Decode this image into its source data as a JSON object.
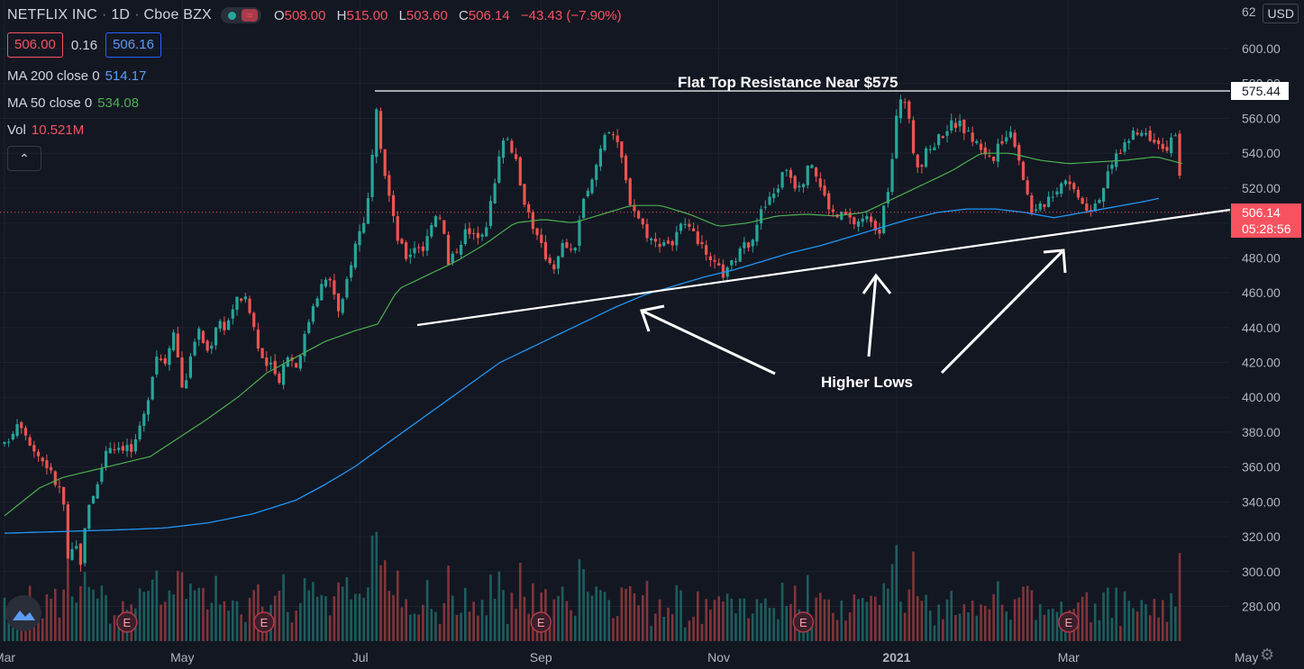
{
  "header": {
    "symbol": "NETFLIX INC",
    "interval": "1D",
    "exchange": "Cboe BZX",
    "open_label": "O",
    "open": "508.00",
    "high_label": "H",
    "high": "515.00",
    "low_label": "L",
    "low": "503.60",
    "close_label": "C",
    "close": "506.14",
    "change": "−43.43 (−7.90%)"
  },
  "quote": {
    "bid": "506.00",
    "spread": "0.16",
    "ask": "506.16"
  },
  "indicators": {
    "ma200": {
      "label": "MA 200 close 0",
      "value": "514.17"
    },
    "ma50": {
      "label": "MA 50 close 0",
      "value": "534.08"
    },
    "vol": {
      "label": "Vol",
      "value": "10.521M"
    }
  },
  "currency": "USD",
  "top_clipped_label": "62",
  "colors": {
    "up": "#26a69a",
    "down": "#ef5350",
    "ma200": "#2196f3",
    "ma50": "#4caf50",
    "bg": "#131722",
    "grid": "#1e222d",
    "price_tag": "#f7525f"
  },
  "chart_data": {
    "type": "candlestick",
    "yaxis_ticks": [
      "600.00",
      "580.00",
      "560.00",
      "540.00",
      "520.00",
      "500.00",
      "480.00",
      "460.00",
      "440.00",
      "420.00",
      "400.00",
      "380.00",
      "360.00",
      "340.00",
      "320.00",
      "300.00",
      "280.00"
    ],
    "ylim": [
      268,
      623
    ],
    "xaxis_labels": [
      {
        "text": "Mar",
        "day": 0,
        "bold": false
      },
      {
        "text": "May",
        "day": 61,
        "bold": false
      },
      {
        "text": "Jul",
        "day": 122,
        "bold": false
      },
      {
        "text": "Sep",
        "day": 184,
        "bold": false
      },
      {
        "text": "Nov",
        "day": 245,
        "bold": false
      },
      {
        "text": "2021",
        "day": 306,
        "bold": true
      },
      {
        "text": "Mar",
        "day": 365,
        "bold": false
      },
      {
        "text": "May",
        "day": 426,
        "bold": false
      }
    ],
    "last_price": "506.14",
    "countdown": "05:28:56",
    "resistance_tag": "575.44",
    "resistance_value": 575.44,
    "price_anchors": [
      [
        0,
        372
      ],
      [
        5,
        388
      ],
      [
        10,
        370
      ],
      [
        15,
        360
      ],
      [
        17,
        352
      ],
      [
        20,
        345
      ],
      [
        22,
        300
      ],
      [
        24,
        318
      ],
      [
        26,
        305
      ],
      [
        29,
        340
      ],
      [
        32,
        350
      ],
      [
        35,
        372
      ],
      [
        38,
        372
      ],
      [
        42,
        372
      ],
      [
        44,
        368
      ],
      [
        48,
        390
      ],
      [
        52,
        425
      ],
      [
        55,
        420
      ],
      [
        58,
        440
      ],
      [
        61,
        405
      ],
      [
        63,
        415
      ],
      [
        66,
        440
      ],
      [
        70,
        425
      ],
      [
        73,
        445
      ],
      [
        76,
        440
      ],
      [
        79,
        455
      ],
      [
        82,
        458
      ],
      [
        85,
        445
      ],
      [
        88,
        420
      ],
      [
        91,
        418
      ],
      [
        94,
        410
      ],
      [
        97,
        425
      ],
      [
        100,
        418
      ],
      [
        103,
        435
      ],
      [
        106,
        455
      ],
      [
        109,
        465
      ],
      [
        112,
        468
      ],
      [
        115,
        445
      ],
      [
        118,
        472
      ],
      [
        121,
        492
      ],
      [
        124,
        505
      ],
      [
        126,
        530
      ],
      [
        127,
        572
      ],
      [
        129,
        540
      ],
      [
        131,
        525
      ],
      [
        133,
        505
      ],
      [
        135,
        490
      ],
      [
        138,
        480
      ],
      [
        141,
        488
      ],
      [
        144,
        485
      ],
      [
        147,
        505
      ],
      [
        150,
        505
      ],
      [
        152,
        475
      ],
      [
        155,
        485
      ],
      [
        158,
        495
      ],
      [
        161,
        492
      ],
      [
        165,
        498
      ],
      [
        168,
        520
      ],
      [
        171,
        550
      ],
      [
        173,
        548
      ],
      [
        175,
        538
      ],
      [
        177,
        520
      ],
      [
        180,
        505
      ],
      [
        183,
        490
      ],
      [
        186,
        480
      ],
      [
        189,
        475
      ],
      [
        192,
        490
      ],
      [
        195,
        480
      ],
      [
        198,
        510
      ],
      [
        201,
        520
      ],
      [
        204,
        540
      ],
      [
        206,
        553
      ],
      [
        208,
        555
      ],
      [
        210,
        545
      ],
      [
        212,
        535
      ],
      [
        214,
        515
      ],
      [
        217,
        505
      ],
      [
        220,
        495
      ],
      [
        223,
        488
      ],
      [
        226,
        490
      ],
      [
        229,
        488
      ],
      [
        232,
        498
      ],
      [
        235,
        495
      ],
      [
        238,
        490
      ],
      [
        241,
        478
      ],
      [
        244,
        475
      ],
      [
        247,
        470
      ],
      [
        250,
        478
      ],
      [
        253,
        485
      ],
      [
        256,
        490
      ],
      [
        259,
        505
      ],
      [
        262,
        512
      ],
      [
        265,
        520
      ],
      [
        268,
        533
      ],
      [
        271,
        522
      ],
      [
        274,
        525
      ],
      [
        277,
        535
      ],
      [
        280,
        520
      ],
      [
        282,
        512
      ],
      [
        285,
        503
      ],
      [
        288,
        505
      ],
      [
        291,
        500
      ],
      [
        294,
        502
      ],
      [
        297,
        503
      ],
      [
        300,
        495
      ],
      [
        302,
        510
      ],
      [
        304,
        528
      ],
      [
        306,
        560
      ],
      [
        308,
        578
      ],
      [
        310,
        560
      ],
      [
        312,
        540
      ],
      [
        314,
        530
      ],
      [
        316,
        540
      ],
      [
        319,
        546
      ],
      [
        322,
        552
      ],
      [
        325,
        557
      ],
      [
        328,
        556
      ],
      [
        331,
        550
      ],
      [
        334,
        545
      ],
      [
        337,
        540
      ],
      [
        339,
        535
      ],
      [
        342,
        548
      ],
      [
        345,
        552
      ],
      [
        347,
        545
      ],
      [
        349,
        530
      ],
      [
        351,
        515
      ],
      [
        353,
        505
      ],
      [
        355,
        508
      ],
      [
        358,
        515
      ],
      [
        361,
        520
      ],
      [
        364,
        527
      ],
      [
        366,
        520
      ],
      [
        368,
        518
      ],
      [
        370,
        512
      ],
      [
        372,
        508
      ],
      [
        375,
        514
      ],
      [
        378,
        525
      ],
      [
        381,
        538
      ],
      [
        384,
        545
      ],
      [
        387,
        550
      ],
      [
        390,
        552
      ],
      [
        393,
        550
      ],
      [
        396,
        548
      ],
      [
        398,
        540
      ],
      [
        400,
        550
      ],
      [
        402,
        548
      ],
      [
        404,
        506.14
      ]
    ],
    "ma50_anchors": [
      [
        0,
        332
      ],
      [
        12,
        348
      ],
      [
        20,
        354
      ],
      [
        30,
        358
      ],
      [
        40,
        362
      ],
      [
        50,
        366
      ],
      [
        60,
        377
      ],
      [
        70,
        388
      ],
      [
        80,
        400
      ],
      [
        90,
        414
      ],
      [
        100,
        423
      ],
      [
        110,
        432
      ],
      [
        120,
        438
      ],
      [
        128,
        442
      ],
      [
        135,
        462
      ],
      [
        145,
        470
      ],
      [
        155,
        478
      ],
      [
        165,
        488
      ],
      [
        175,
        500
      ],
      [
        185,
        502
      ],
      [
        195,
        500
      ],
      [
        205,
        505
      ],
      [
        215,
        510
      ],
      [
        225,
        510
      ],
      [
        235,
        505
      ],
      [
        245,
        498
      ],
      [
        255,
        500
      ],
      [
        265,
        504
      ],
      [
        275,
        505
      ],
      [
        285,
        504
      ],
      [
        295,
        506
      ],
      [
        305,
        514
      ],
      [
        315,
        522
      ],
      [
        325,
        530
      ],
      [
        335,
        540
      ],
      [
        345,
        540
      ],
      [
        355,
        536
      ],
      [
        365,
        534
      ],
      [
        375,
        535
      ],
      [
        385,
        536
      ],
      [
        395,
        538
      ],
      [
        404,
        534.08
      ]
    ],
    "ma200_anchors": [
      [
        0,
        322
      ],
      [
        20,
        323
      ],
      [
        40,
        324
      ],
      [
        55,
        325
      ],
      [
        70,
        328
      ],
      [
        85,
        333
      ],
      [
        100,
        341
      ],
      [
        110,
        350
      ],
      [
        120,
        360
      ],
      [
        130,
        372
      ],
      [
        140,
        384
      ],
      [
        150,
        396
      ],
      [
        160,
        408
      ],
      [
        170,
        420
      ],
      [
        180,
        428
      ],
      [
        190,
        436
      ],
      [
        200,
        444
      ],
      [
        210,
        452
      ],
      [
        220,
        459
      ],
      [
        230,
        464
      ],
      [
        240,
        469
      ],
      [
        250,
        473
      ],
      [
        260,
        478
      ],
      [
        270,
        483
      ],
      [
        280,
        487
      ],
      [
        290,
        492
      ],
      [
        300,
        497
      ],
      [
        310,
        502
      ],
      [
        320,
        506
      ],
      [
        330,
        508
      ],
      [
        340,
        508
      ],
      [
        350,
        506
      ],
      [
        360,
        503
      ],
      [
        370,
        506
      ],
      [
        380,
        509
      ],
      [
        390,
        512
      ],
      [
        396,
        514.17
      ]
    ],
    "annotations": [
      {
        "text": "Flat Top Resistance Near $575"
      },
      {
        "text": "Higher Lows"
      }
    ],
    "earnings_marker": "E",
    "earnings_days": [
      42,
      89,
      184,
      274,
      365
    ]
  }
}
